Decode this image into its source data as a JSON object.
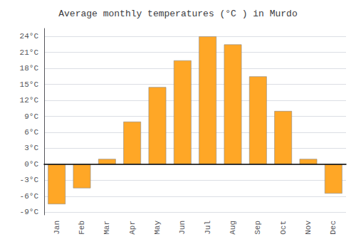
{
  "chart_data": {
    "type": "bar",
    "title": "Average monthly temperatures (°C ) in Murdo",
    "categories": [
      "Jan",
      "Feb",
      "Mar",
      "Apr",
      "May",
      "Jun",
      "Jul",
      "Aug",
      "Sep",
      "Oct",
      "Nov",
      "Dec"
    ],
    "values": [
      -7.5,
      -4.5,
      1.0,
      8.0,
      14.5,
      19.5,
      24.0,
      22.5,
      16.5,
      10.0,
      1.0,
      -5.5
    ],
    "color": "#FFA726",
    "ylim": [
      -9.5,
      25.5
    ],
    "yticks": [
      {
        "value": -9,
        "label": "-9°C"
      },
      {
        "value": -6,
        "label": "-6°C"
      },
      {
        "value": -3,
        "label": "-3°C"
      },
      {
        "value": 0,
        "label": "0°C"
      },
      {
        "value": 3,
        "label": "3°C"
      },
      {
        "value": 6,
        "label": "6°C"
      },
      {
        "value": 9,
        "label": "9°C"
      },
      {
        "value": 12,
        "label": "12°C"
      },
      {
        "value": 15,
        "label": "15°C"
      },
      {
        "value": 18,
        "label": "18°C"
      },
      {
        "value": 21,
        "label": "21°C"
      },
      {
        "value": 24,
        "label": "24°C"
      }
    ],
    "grid": true
  }
}
